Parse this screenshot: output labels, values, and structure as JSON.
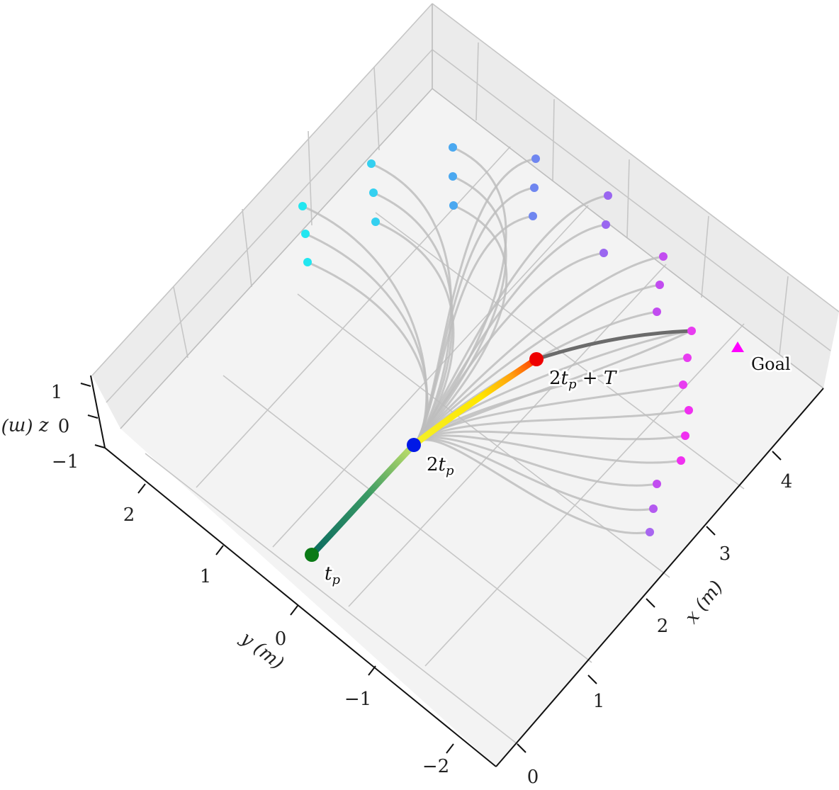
{
  "chart_data": {
    "type": "line",
    "title": "",
    "xlabel": "x (m)",
    "ylabel": "y (m)",
    "zlabel": "z (m)",
    "x_ticks": [
      "0",
      "1",
      "2",
      "3",
      "4"
    ],
    "y_ticks": [
      "−2",
      "−1",
      "0",
      "1",
      "2"
    ],
    "z_ticks": [
      "−1",
      "0",
      "1"
    ],
    "xlim": [
      0,
      4.6
    ],
    "ylim": [
      -2.5,
      2.6
    ],
    "zlim": [
      -1,
      1.2
    ],
    "grid": true,
    "trajectory": {
      "start": {
        "label": "t_p",
        "x": 0.0,
        "y": 0.0
      },
      "mid": {
        "label": "2t_p",
        "x": 1.45,
        "y": 0.05
      },
      "commit": {
        "label": "2t_p + T",
        "x": 2.95,
        "y": 0.45
      },
      "end": {
        "x": 4.4,
        "y": 0.65
      }
    },
    "goal": {
      "label": "Goal",
      "x": 4.7,
      "y": 0.65,
      "color": "#ff00ff"
    },
    "candidate_endpoints": [
      {
        "x": 1.6,
        "y": 2.2,
        "z": 0.9,
        "color": "#22e6f0"
      },
      {
        "x": 1.6,
        "y": 2.2,
        "z": 0.0,
        "color": "#22e6f0"
      },
      {
        "x": 1.6,
        "y": 2.2,
        "z": -0.9,
        "color": "#22e6f0"
      },
      {
        "x": 2.2,
        "y": 2.0,
        "z": 0.9,
        "color": "#34d0f0"
      },
      {
        "x": 2.2,
        "y": 2.0,
        "z": 0.0,
        "color": "#34d0f0"
      },
      {
        "x": 2.2,
        "y": 2.0,
        "z": -0.9,
        "color": "#34d0f0"
      },
      {
        "x": 2.8,
        "y": 1.7,
        "z": 0.9,
        "color": "#4aa8f0"
      },
      {
        "x": 2.8,
        "y": 1.7,
        "z": 0.0,
        "color": "#4aa8f0"
      },
      {
        "x": 2.8,
        "y": 1.7,
        "z": -0.9,
        "color": "#4aa8f0"
      },
      {
        "x": 3.3,
        "y": 1.4,
        "z": 0.9,
        "color": "#6f86f0"
      },
      {
        "x": 3.3,
        "y": 1.4,
        "z": 0.0,
        "color": "#6f86f0"
      },
      {
        "x": 3.3,
        "y": 1.4,
        "z": -0.9,
        "color": "#6f86f0"
      },
      {
        "x": 3.8,
        "y": 1.05,
        "z": 0.9,
        "color": "#9a66f0"
      },
      {
        "x": 3.8,
        "y": 1.05,
        "z": 0.0,
        "color": "#9a66f0"
      },
      {
        "x": 3.8,
        "y": 1.05,
        "z": -0.9,
        "color": "#9a66f0"
      },
      {
        "x": 4.2,
        "y": 0.65,
        "z": 0.9,
        "color": "#c24cf0"
      },
      {
        "x": 4.2,
        "y": 0.65,
        "z": 0.0,
        "color": "#c24cf0"
      },
      {
        "x": 4.2,
        "y": 0.65,
        "z": -0.9,
        "color": "#c24cf0"
      },
      {
        "x": 4.4,
        "y": 0.2,
        "z": 0.9,
        "color": "#e83cf0"
      },
      {
        "x": 4.4,
        "y": 0.2,
        "z": 0.0,
        "color": "#e83cf0"
      },
      {
        "x": 4.4,
        "y": 0.2,
        "z": -0.9,
        "color": "#e83cf0"
      },
      {
        "x": 4.55,
        "y": -0.25,
        "z": 0.9,
        "color": "#f030f0"
      },
      {
        "x": 4.55,
        "y": -0.25,
        "z": 0.0,
        "color": "#f030f0"
      },
      {
        "x": 4.55,
        "y": -0.25,
        "z": -0.9,
        "color": "#f030f0"
      },
      {
        "x": 4.6,
        "y": -0.8,
        "z": 0.9,
        "color": "#c24cf0"
      },
      {
        "x": 4.6,
        "y": -0.8,
        "z": 0.0,
        "color": "#b45af0"
      },
      {
        "x": 4.6,
        "y": -0.8,
        "z": -0.9,
        "color": "#a866f0"
      }
    ],
    "colors": {
      "start": "#0a7a16",
      "mid": "#0018e6",
      "commit": "#ee0000",
      "candidate": "#bdbdbd",
      "remaining": "#6b6b6b"
    }
  }
}
